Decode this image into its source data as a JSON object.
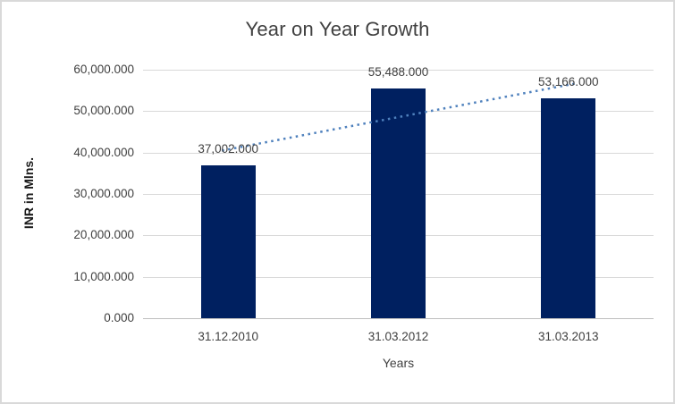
{
  "chart_data": {
    "type": "bar",
    "title": "Year on Year Growth",
    "xlabel": "Years",
    "ylabel": "INR in Mlns.",
    "categories": [
      "31.12.2010",
      "31.03.2012",
      "31.03.2013"
    ],
    "values": [
      37002,
      55488,
      53166
    ],
    "value_labels": [
      "37,002.000",
      "55,488.000",
      "53,166.000"
    ],
    "y_ticks": [
      0,
      10000,
      20000,
      30000,
      40000,
      50000,
      60000
    ],
    "y_tick_labels": [
      "0.000",
      "10,000.000",
      "20,000.000",
      "30,000.000",
      "40,000.000",
      "50,000.000",
      "60,000.000"
    ],
    "ylim": [
      0,
      60000
    ],
    "grid": true,
    "legend": false,
    "trendline": {
      "type": "linear",
      "style": "dotted",
      "start_value": 40470,
      "end_value": 56634,
      "color": "#4f81bd"
    },
    "colors": {
      "bar": "#002060",
      "gridline": "#d9d9d9",
      "axis_line": "#bfbfbf",
      "text": "#404040",
      "border": "#d9d9d9"
    }
  }
}
